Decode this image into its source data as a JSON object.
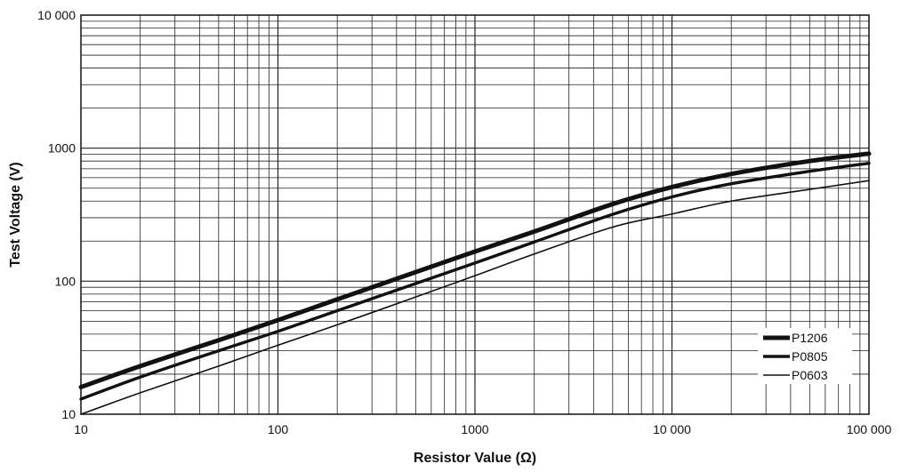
{
  "chart_data": {
    "type": "line",
    "xlabel": "Resistor Value (Ω)",
    "ylabel": "Test Voltage (V)",
    "x_scale": "log",
    "y_scale": "log",
    "xlim": [
      10,
      100000
    ],
    "ylim": [
      10,
      10000
    ],
    "x_ticks": [
      {
        "value": 10,
        "label": "10"
      },
      {
        "value": 100,
        "label": "100"
      },
      {
        "value": 1000,
        "label": "1000"
      },
      {
        "value": 10000,
        "label": "10 000"
      },
      {
        "value": 100000,
        "label": "100 000"
      }
    ],
    "y_ticks": [
      {
        "value": 10,
        "label": "10"
      },
      {
        "value": 100,
        "label": "100"
      },
      {
        "value": 1000,
        "label": "1000"
      },
      {
        "value": 10000,
        "label": "10 000"
      }
    ],
    "grid": true,
    "legend_position": "bottom-right",
    "series": [
      {
        "name": "P1206",
        "color": "#111111",
        "points": [
          [
            10,
            16
          ],
          [
            20,
            23
          ],
          [
            50,
            36
          ],
          [
            100,
            51
          ],
          [
            200,
            73
          ],
          [
            500,
            117
          ],
          [
            1000,
            167
          ],
          [
            2000,
            236
          ],
          [
            5000,
            380
          ],
          [
            10000,
            510
          ],
          [
            20000,
            640
          ],
          [
            50000,
            800
          ],
          [
            100000,
            910
          ]
        ]
      },
      {
        "name": "P0805",
        "color": "#111111",
        "points": [
          [
            10,
            13
          ],
          [
            20,
            19
          ],
          [
            50,
            30
          ],
          [
            100,
            42
          ],
          [
            200,
            60
          ],
          [
            500,
            96
          ],
          [
            1000,
            137
          ],
          [
            2000,
            197
          ],
          [
            5000,
            318
          ],
          [
            10000,
            430
          ],
          [
            20000,
            540
          ],
          [
            50000,
            670
          ],
          [
            100000,
            770
          ]
        ]
      },
      {
        "name": "P0603",
        "color": "#111111",
        "points": [
          [
            10,
            10
          ],
          [
            20,
            14.5
          ],
          [
            50,
            23
          ],
          [
            100,
            33
          ],
          [
            200,
            47
          ],
          [
            500,
            76
          ],
          [
            1000,
            110
          ],
          [
            2000,
            160
          ],
          [
            5000,
            255
          ],
          [
            10000,
            320
          ],
          [
            20000,
            400
          ],
          [
            50000,
            490
          ],
          [
            100000,
            570
          ]
        ]
      }
    ]
  }
}
